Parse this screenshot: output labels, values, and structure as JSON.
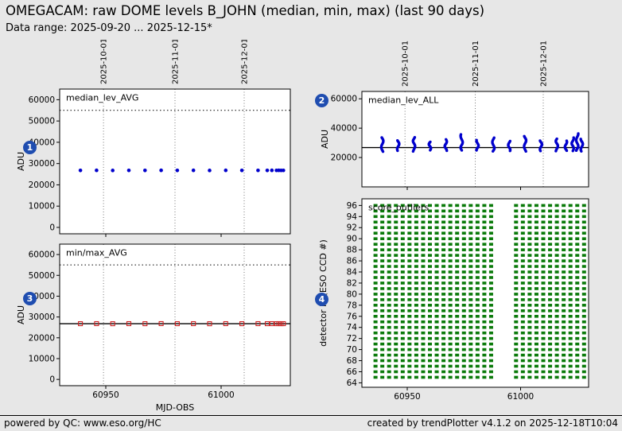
{
  "header": {
    "title": "OMEGACAM: raw DOME levels B_JOHN (median, min, max) (last 90 days)",
    "subtitle": "Data range: 2025-09-20 ... 2025-12-15*"
  },
  "footer": {
    "left": "powered by QC: www.eso.org/HC",
    "right": "created by trendPlotter v4.1.2 on 2025-12-18T10:04"
  },
  "badges": [
    "1",
    "2",
    "3",
    "4"
  ],
  "colors": {
    "badge_blue": "#1f4db0",
    "point_blue": "#0000cc",
    "square_red": "#cc2020",
    "cell_green": "#0a7a0a"
  },
  "chart_data": [
    {
      "type": "scatter",
      "title": "median_lev_AVG",
      "ylabel": "ADU",
      "xlim": [
        60930,
        61030
      ],
      "ylim": [
        -3000,
        65000
      ],
      "xticks": [
        60950,
        61000
      ],
      "yticks": [
        0,
        10000,
        20000,
        30000,
        40000,
        50000,
        60000
      ],
      "date_marks": [
        {
          "mjd": 60949,
          "label": "2025-10-01"
        },
        {
          "mjd": 60980,
          "label": "2025-11-01"
        },
        {
          "mjd": 61010,
          "label": "2025-12-01"
        }
      ],
      "hlines": {
        "dotted": 55000
      },
      "marker": {
        "shape": "circle",
        "color": "#0000cc"
      },
      "points": [
        {
          "x": 60939,
          "y": 26790
        },
        {
          "x": 60946,
          "y": 26810
        },
        {
          "x": 60953,
          "y": 26770
        },
        {
          "x": 60960,
          "y": 26800
        },
        {
          "x": 60967,
          "y": 26780
        },
        {
          "x": 60974,
          "y": 26820
        },
        {
          "x": 60981,
          "y": 26790
        },
        {
          "x": 60988,
          "y": 26805
        },
        {
          "x": 60995,
          "y": 26765
        },
        {
          "x": 61002,
          "y": 26810
        },
        {
          "x": 61009,
          "y": 26785
        },
        {
          "x": 61016,
          "y": 26800
        },
        {
          "x": 61020,
          "y": 26790
        },
        {
          "x": 61022,
          "y": 26805
        },
        {
          "x": 61024,
          "y": 26795
        },
        {
          "x": 61025,
          "y": 26810
        },
        {
          "x": 61026,
          "y": 26785
        },
        {
          "x": 61027,
          "y": 26800
        }
      ]
    },
    {
      "type": "scatter-clusters",
      "title": "median_lev_ALL",
      "ylabel": "ADU",
      "xlim": [
        60930,
        61030
      ],
      "ylim": [
        0,
        65000
      ],
      "xticks": [
        60950,
        61000
      ],
      "yticks": [
        20000,
        40000,
        60000
      ],
      "date_marks": [
        {
          "mjd": 60949,
          "label": "2025-10-01"
        },
        {
          "mjd": 60980,
          "label": "2025-11-01"
        },
        {
          "mjd": 61010,
          "label": "2025-12-01"
        }
      ],
      "hlines": {
        "solid": 26800
      },
      "marker": {
        "shape": "circle",
        "color": "#0000cc"
      },
      "clusters": [
        {
          "x": 60939,
          "ymin": 24300,
          "ymax": 33500,
          "n": 14
        },
        {
          "x": 60946,
          "ymin": 24800,
          "ymax": 31500,
          "n": 12
        },
        {
          "x": 60953,
          "ymin": 24200,
          "ymax": 34000,
          "n": 15
        },
        {
          "x": 60960,
          "ymin": 24900,
          "ymax": 30800,
          "n": 12
        },
        {
          "x": 60967,
          "ymin": 24400,
          "ymax": 32500,
          "n": 14
        },
        {
          "x": 60974,
          "ymin": 24600,
          "ymax": 35500,
          "n": 16
        },
        {
          "x": 60981,
          "ymin": 24800,
          "ymax": 31800,
          "n": 13
        },
        {
          "x": 60988,
          "ymin": 24300,
          "ymax": 33200,
          "n": 14
        },
        {
          "x": 60995,
          "ymin": 24700,
          "ymax": 31000,
          "n": 12
        },
        {
          "x": 61002,
          "ymin": 24500,
          "ymax": 34500,
          "n": 15
        },
        {
          "x": 61009,
          "ymin": 24600,
          "ymax": 31500,
          "n": 13
        },
        {
          "x": 61016,
          "ymin": 24400,
          "ymax": 33000,
          "n": 14
        },
        {
          "x": 61020,
          "ymin": 24800,
          "ymax": 31200,
          "n": 12
        },
        {
          "x": 61023,
          "ymin": 24300,
          "ymax": 33800,
          "n": 15
        },
        {
          "x": 61025,
          "ymin": 24600,
          "ymax": 36000,
          "n": 17
        },
        {
          "x": 61027,
          "ymin": 24500,
          "ymax": 32500,
          "n": 14
        }
      ]
    },
    {
      "type": "scatter",
      "title": "min/max_AVG",
      "xlabel": "MJD-OBS",
      "ylabel": "ADU",
      "xlim": [
        60930,
        61030
      ],
      "ylim": [
        -3000,
        65000
      ],
      "xticks": [
        60950,
        61000
      ],
      "yticks": [
        0,
        10000,
        20000,
        30000,
        40000,
        50000,
        60000
      ],
      "date_marks": [
        {
          "mjd": 60949,
          "label": "2025-10-01"
        },
        {
          "mjd": 60980,
          "label": "2025-11-01"
        },
        {
          "mjd": 61010,
          "label": "2025-12-01"
        }
      ],
      "hlines": {
        "solid": 26780,
        "dotted": 55000
      },
      "marker": {
        "shape": "square",
        "color": "#cc2020"
      },
      "points": [
        {
          "x": 60939,
          "y": 26780
        },
        {
          "x": 60946,
          "y": 26800
        },
        {
          "x": 60953,
          "y": 26760
        },
        {
          "x": 60960,
          "y": 26790
        },
        {
          "x": 60967,
          "y": 26770
        },
        {
          "x": 60974,
          "y": 26810
        },
        {
          "x": 60981,
          "y": 26780
        },
        {
          "x": 60988,
          "y": 26795
        },
        {
          "x": 60995,
          "y": 26755
        },
        {
          "x": 61002,
          "y": 26800
        },
        {
          "x": 61009,
          "y": 26775
        },
        {
          "x": 61016,
          "y": 26790
        },
        {
          "x": 61020,
          "y": 26780
        },
        {
          "x": 61022,
          "y": 26795
        },
        {
          "x": 61024,
          "y": 26785
        },
        {
          "x": 61025,
          "y": 26800
        },
        {
          "x": 61026,
          "y": 26775
        },
        {
          "x": 61027,
          "y": 26790
        }
      ]
    },
    {
      "type": "grid",
      "title": "score_outliers",
      "ylabel": "detector id (ESO CCD #)",
      "xlim": [
        60930,
        61030
      ],
      "ylim": [
        63.2,
        97.2
      ],
      "xticks": [
        60950,
        61000
      ],
      "yticks": [
        64,
        66,
        68,
        70,
        72,
        74,
        76,
        78,
        80,
        82,
        84,
        86,
        88,
        90,
        92,
        94,
        96
      ],
      "grid": {
        "columns": [
          60936,
          60939,
          60942,
          60945,
          60948,
          60951,
          60954,
          60957,
          60960,
          60963,
          60966,
          60969,
          60972,
          60975,
          60978,
          60981,
          60984,
          60987,
          60998,
          61001,
          61004,
          61007,
          61010,
          61013,
          61016,
          61019,
          61022,
          61025,
          61028
        ],
        "row_min": 65,
        "row_max": 96,
        "color": "#0a7a0a"
      }
    }
  ]
}
